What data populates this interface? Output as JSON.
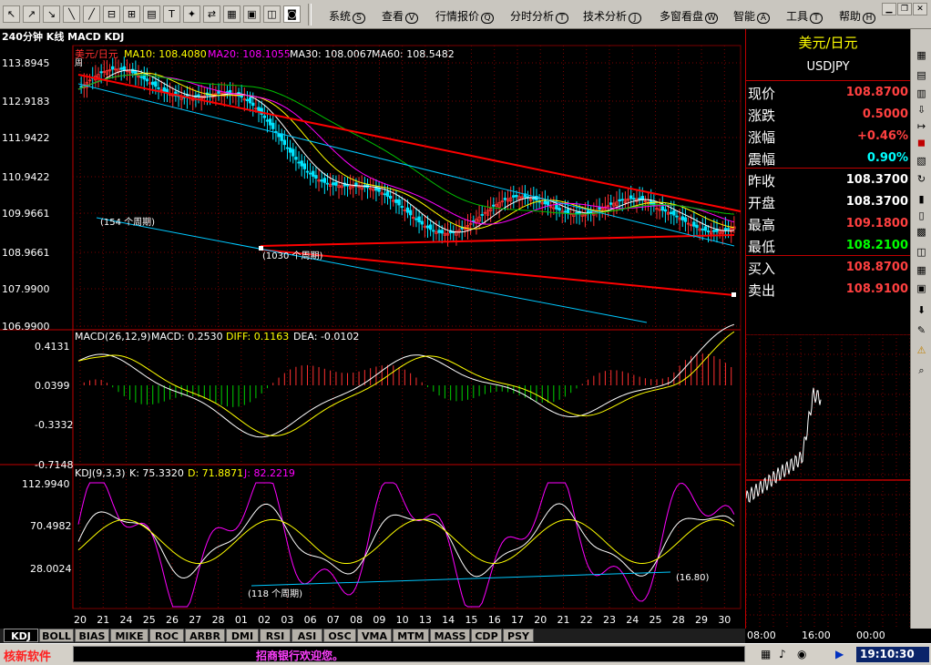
{
  "toolbar": {
    "icons": [
      "back-icon",
      "forward-icon",
      "refresh-icon",
      "home-icon",
      "up-icon",
      "down-icon",
      "zoom-in-icon",
      "zoom-out-icon",
      "candle-icon",
      "arrow-icon",
      "grid-icon",
      "lock-icon",
      "unlock-icon",
      "screen-icon",
      "page-icon"
    ],
    "icon_glyphs": [
      "↖",
      "↗",
      "↘",
      "╲",
      "╱",
      "⊟",
      "⊞",
      "▤",
      "T",
      "✦",
      "⇄",
      "▦",
      "▣",
      "◫",
      "◙"
    ],
    "menus": [
      {
        "label": "系统",
        "key": "S"
      },
      {
        "label": "查看",
        "key": "V"
      },
      {
        "label": "行情报价",
        "key": "Q"
      },
      {
        "label": "分时分析",
        "key": "T"
      },
      {
        "label": "技术分析",
        "key": "J"
      },
      {
        "label": "多窗看盘",
        "key": "W"
      },
      {
        "label": "智能",
        "key": "A"
      },
      {
        "label": "工具",
        "key": "T"
      },
      {
        "label": "帮助",
        "key": "H"
      }
    ]
  },
  "chart": {
    "header": "240分钟 K线 MACD KDJ",
    "main": {
      "symbol_label": "美元/日元",
      "ma10": "MA10: 108.4080",
      "ma20": "MA20: 108.1055",
      "ma30": "MA30: 108.0067",
      "ma60": "MA60: 108.5482",
      "yticks": [
        "113.8945",
        "112.9183",
        "111.9422",
        "110.9422",
        "109.9661",
        "108.9661",
        "107.9900",
        "106.9900"
      ],
      "annot1": "(154 个周期)",
      "annot2": "(1030 个周期)",
      "annot_left": "周"
    },
    "macd": {
      "label": "MACD(26,12,9)",
      "macd": "MACD: 0.2530",
      "diff": "DIFF: 0.1163",
      "dea": "DEA: -0.0102",
      "yticks": [
        "0.4131",
        "0.0399",
        "-0.3332",
        "-0.7148"
      ]
    },
    "kdj": {
      "label": "KDJ(9,3,3)",
      "k": "K: 75.3320",
      "d": "D: 71.8871",
      "j": "J: 82.2219",
      "yticks": [
        "112.9940",
        "70.4982",
        "28.0024"
      ],
      "annot1": "(118 个周期)",
      "annot2": "(16.80)"
    },
    "xticks": [
      "20",
      "21",
      "24",
      "25",
      "26",
      "27",
      "28",
      "01",
      "02",
      "03",
      "06",
      "07",
      "08",
      "09",
      "10",
      "13",
      "14",
      "15",
      "16",
      "17",
      "20",
      "21",
      "22",
      "23",
      "24",
      "25",
      "28",
      "29",
      "30"
    ],
    "colors": {
      "up": "#ff3030",
      "down": "#00e5ff",
      "ma10": "#ffffff",
      "ma20": "#ffff00",
      "ma30": "#ff00ff",
      "ma60": "#00c000",
      "trend": "#ff0000",
      "channel": "#00c8ff",
      "grid": "#7a0000"
    }
  },
  "quote": {
    "name": "美元/日元",
    "code": "USDJPY",
    "rows": [
      {
        "label": "现价",
        "value": "108.8700",
        "color": "#ff4040"
      },
      {
        "label": "涨跌",
        "value": "0.5000",
        "color": "#ff4040"
      },
      {
        "label": "涨幅",
        "value": "+0.46%",
        "color": "#ff4040"
      },
      {
        "label": "震幅",
        "value": "0.90%",
        "color": "#00ffff"
      },
      {
        "label": "昨收",
        "value": "108.3700",
        "color": "#ffffff"
      },
      {
        "label": "开盘",
        "value": "108.3700",
        "color": "#ffffff"
      },
      {
        "label": "最高",
        "value": "109.1800",
        "color": "#ff4040"
      },
      {
        "label": "最低",
        "value": "108.2100",
        "color": "#00ff00"
      },
      {
        "label": "买入",
        "value": "108.8700",
        "color": "#ff4040"
      },
      {
        "label": "卖出",
        "value": "108.9100",
        "color": "#ff4040"
      }
    ],
    "times": [
      "08:00",
      "16:00",
      "00:00"
    ]
  },
  "tabs": [
    "KDJ",
    "BOLL",
    "BIAS",
    "MIKE",
    "ROC",
    "ARBR",
    "DMI",
    "RSI",
    "ASI",
    "OSC",
    "VMA",
    "MTM",
    "MASS",
    "CDP",
    "PSY"
  ],
  "status": {
    "brand": "核新软件",
    "marquee": "招商银行欢迎您。",
    "clock": "19:10:30"
  }
}
